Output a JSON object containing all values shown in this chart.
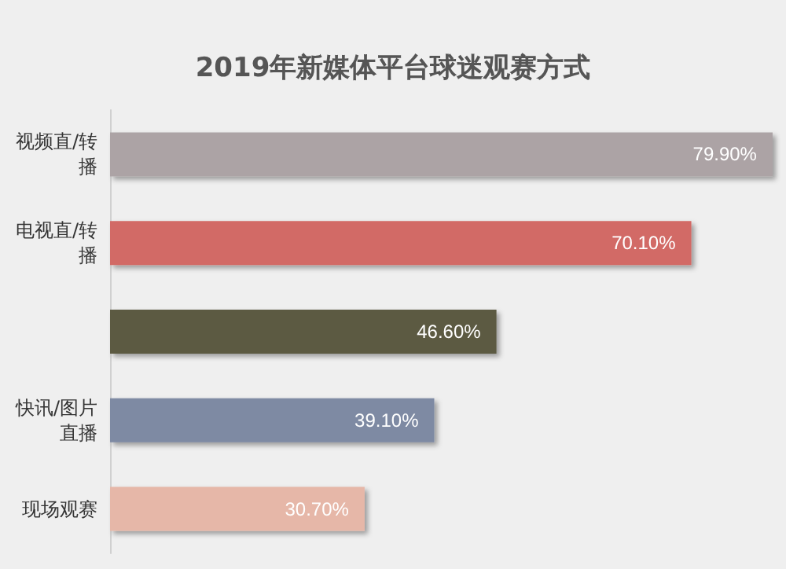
{
  "chart_data": {
    "type": "bar",
    "orientation": "horizontal",
    "title": "2019年新媒体平台球迷观赛方式",
    "categories": [
      "视频直/转播",
      "电视直/转播",
      null,
      "快讯/图片直播",
      "现场观赛"
    ],
    "values": [
      79.9,
      70.1,
      46.6,
      39.1,
      30.7
    ],
    "colors": [
      "#aca3a5",
      "#d26a66",
      "#5b5a42",
      "#7e8aa3",
      "#e6b7a8"
    ],
    "value_labels": [
      "79.90%",
      "70.10%",
      "46.60%",
      "39.10%",
      "30.70%"
    ],
    "grid": false
  }
}
